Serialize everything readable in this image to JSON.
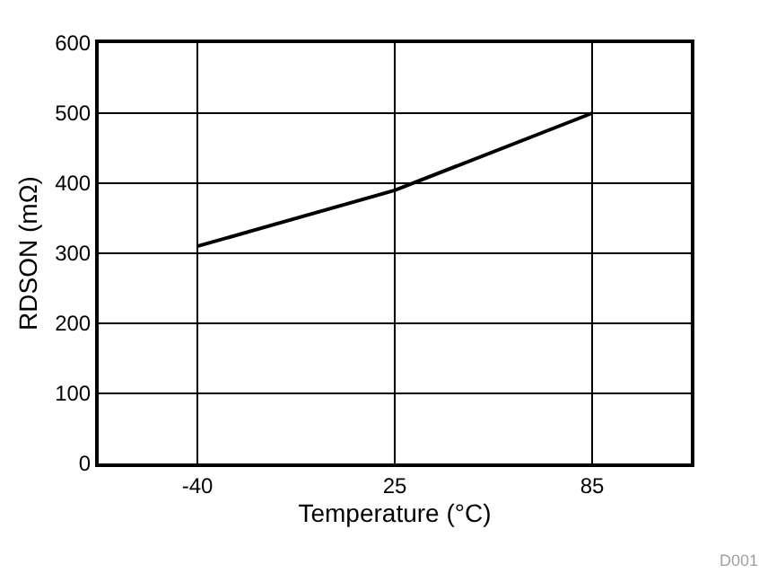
{
  "chart_data": {
    "type": "line",
    "xlabel": "Temperature (°C)",
    "ylabel": "RDSON (mΩ)",
    "categories": [
      "-40",
      "25",
      "85"
    ],
    "series": [
      {
        "color": "#000000",
        "values": [
          310,
          390,
          500
        ]
      }
    ],
    "ylim": [
      0,
      600
    ],
    "yticks": [
      0,
      100,
      200,
      300,
      400,
      500,
      600
    ],
    "grid": true,
    "marker": "none",
    "line_style": "solid",
    "annotations": [
      "D001"
    ]
  }
}
